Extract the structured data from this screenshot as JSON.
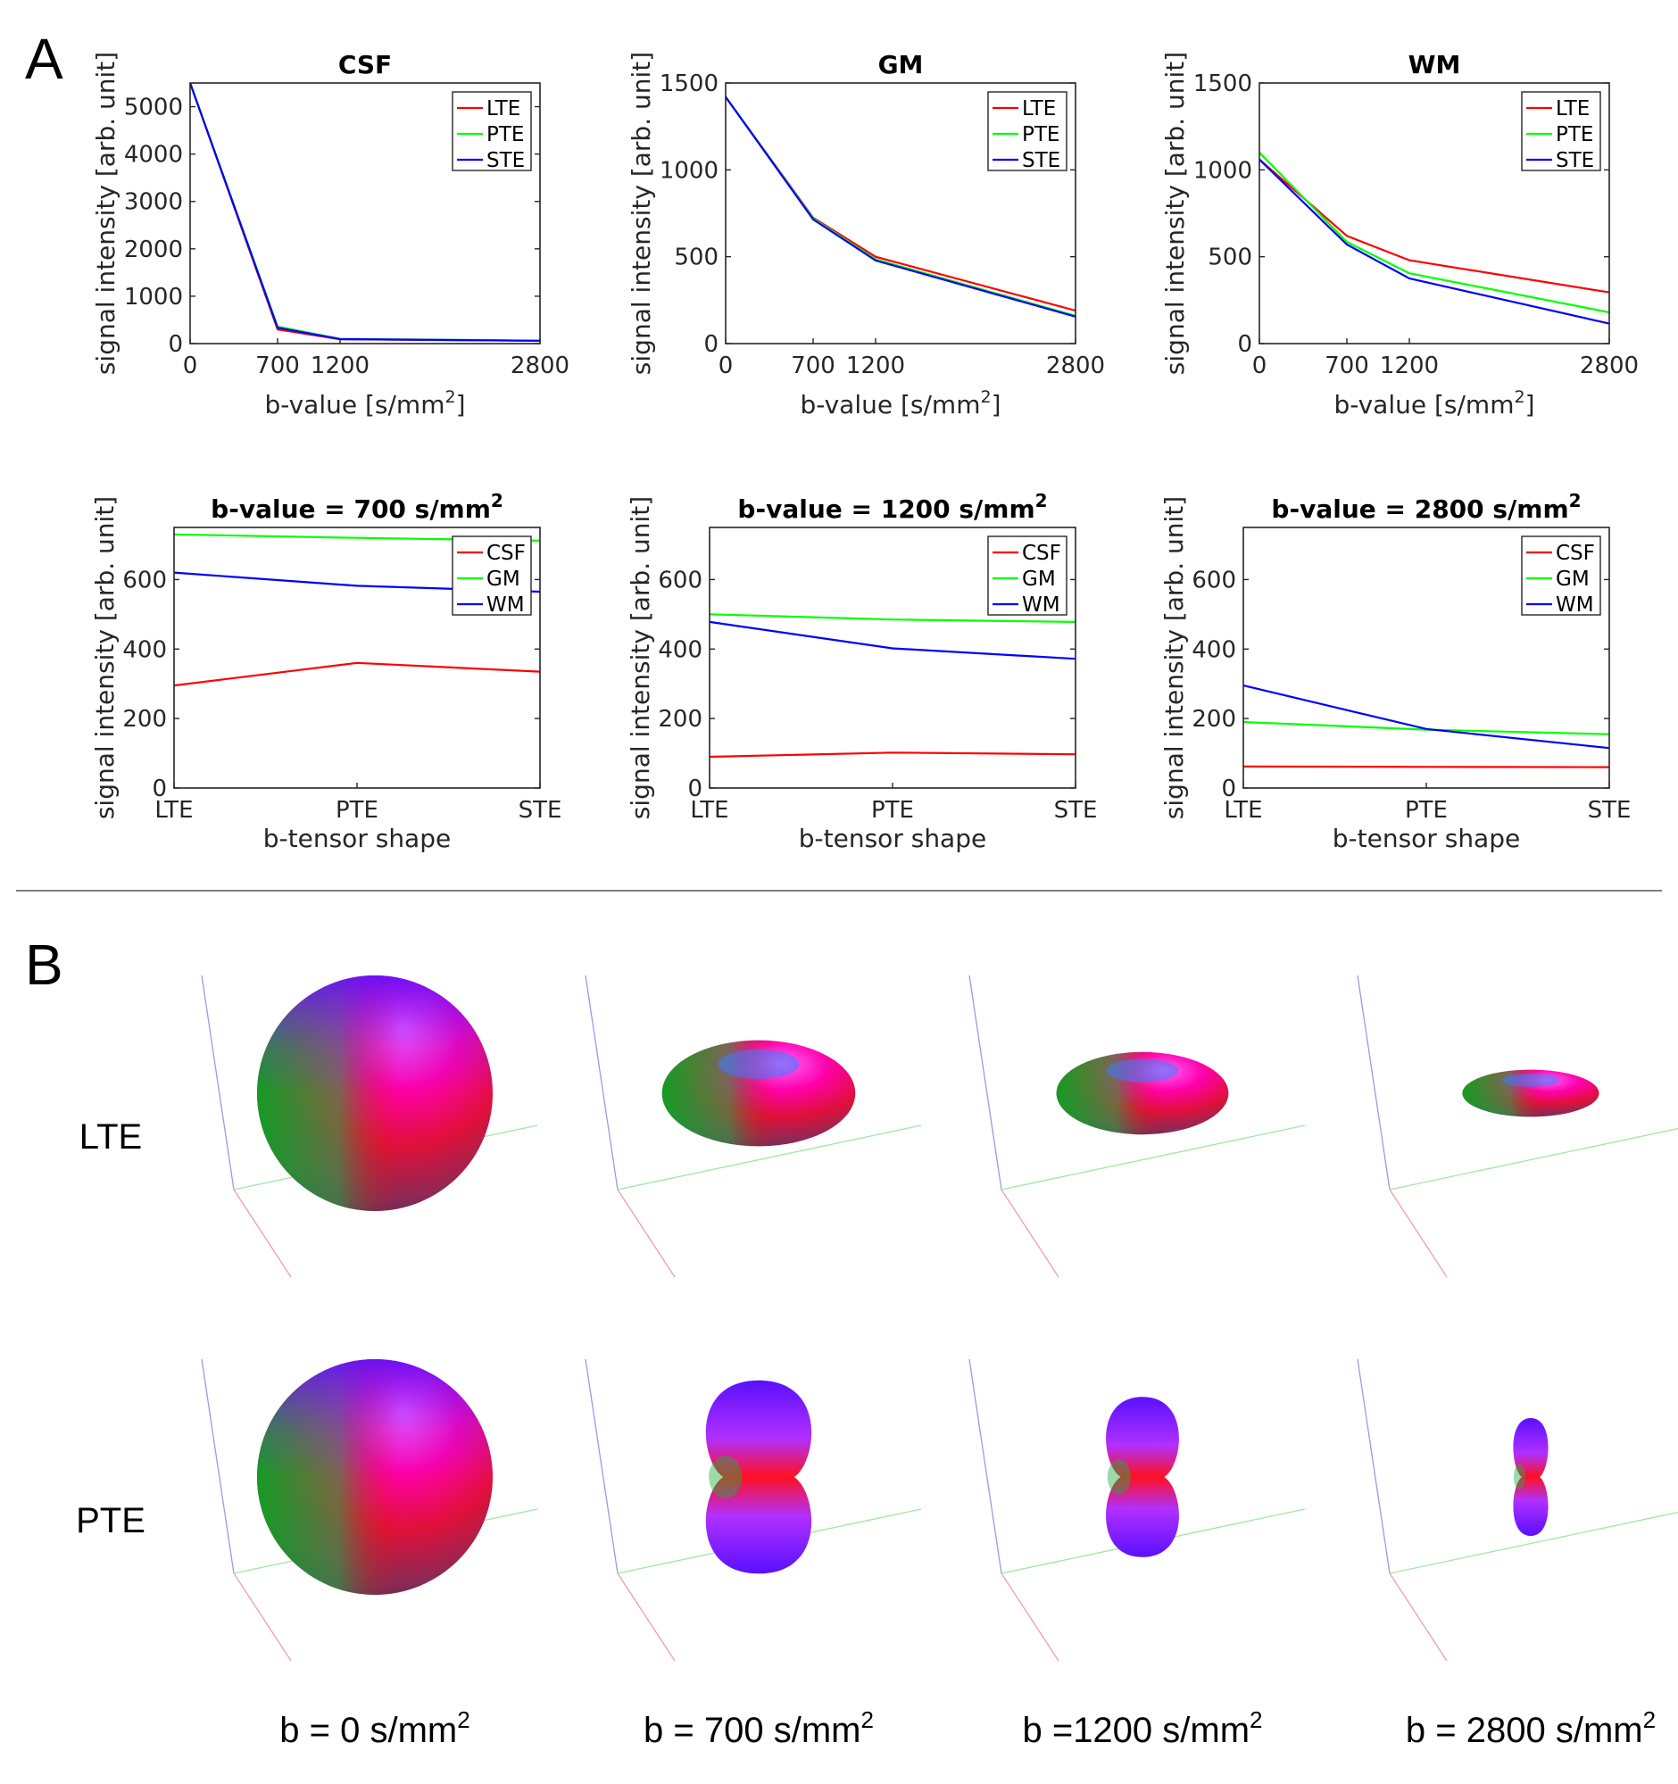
{
  "panels": {
    "a": "A",
    "b": "B"
  },
  "colors": {
    "LTE": "#ff0000",
    "PTE": "#00ff00",
    "STE": "#0000ff",
    "CSF": "#ff0000",
    "GM": "#00ff00",
    "WM": "#0000ff"
  },
  "chart_data": [
    {
      "type": "line",
      "title": "CSF",
      "xlabel": "b-value [s/mm",
      "xlabel_sup": "2",
      "xlabel_end": "]",
      "ylabel": "signal intensity [arb. unit]",
      "x": [
        0,
        700,
        1200,
        2800
      ],
      "xticks": [
        "0",
        "700",
        "1200",
        "2800"
      ],
      "ylim": [
        0,
        5500
      ],
      "yticks": [
        0,
        1000,
        2000,
        3000,
        4000,
        5000
      ],
      "legend": "top-right",
      "series": [
        {
          "name": "LTE",
          "values": [
            5500,
            300,
            90,
            60
          ]
        },
        {
          "name": "PTE",
          "values": [
            5500,
            360,
            100,
            60
          ]
        },
        {
          "name": "STE",
          "values": [
            5500,
            335,
            95,
            60
          ]
        }
      ]
    },
    {
      "type": "line",
      "title": "GM",
      "xlabel": "b-value [s/mm",
      "xlabel_sup": "2",
      "xlabel_end": "]",
      "ylabel": "signal intensity [arb. unit]",
      "x": [
        0,
        700,
        1200,
        2800
      ],
      "xticks": [
        "0",
        "700",
        "1200",
        "2800"
      ],
      "ylim": [
        0,
        1500
      ],
      "yticks": [
        0,
        500,
        1000,
        1500
      ],
      "legend": "top-right",
      "series": [
        {
          "name": "LTE",
          "values": [
            1420,
            725,
            500,
            190
          ]
        },
        {
          "name": "PTE",
          "values": [
            1420,
            720,
            485,
            160
          ]
        },
        {
          "name": "STE",
          "values": [
            1420,
            715,
            478,
            155
          ]
        }
      ]
    },
    {
      "type": "line",
      "title": "WM",
      "xlabel": "b-value [s/mm",
      "xlabel_sup": "2",
      "xlabel_end": "]",
      "ylabel": "signal intensity [arb. unit]",
      "x": [
        0,
        700,
        1200,
        2800
      ],
      "xticks": [
        "0",
        "700",
        "1200",
        "2800"
      ],
      "ylim": [
        0,
        1500
      ],
      "yticks": [
        0,
        500,
        1000,
        1500
      ],
      "legend": "top-right",
      "series": [
        {
          "name": "LTE",
          "values": [
            1060,
            620,
            480,
            295
          ]
        },
        {
          "name": "PTE",
          "values": [
            1100,
            585,
            405,
            180
          ]
        },
        {
          "name": "STE",
          "values": [
            1060,
            570,
            375,
            115
          ]
        }
      ]
    },
    {
      "type": "line",
      "title": "b-value = 700 s/mm",
      "title_sup": "2",
      "xlabel": "b-tensor shape",
      "ylabel": "signal intensity [arb. unit]",
      "categories": [
        "LTE",
        "PTE",
        "STE"
      ],
      "ylim": [
        0,
        750
      ],
      "yticks": [
        0,
        200,
        400,
        600
      ],
      "legend": "top-right",
      "series": [
        {
          "name": "CSF",
          "values": [
            295,
            360,
            335
          ]
        },
        {
          "name": "GM",
          "values": [
            730,
            720,
            712
          ]
        },
        {
          "name": "WM",
          "values": [
            620,
            582,
            565
          ]
        }
      ]
    },
    {
      "type": "line",
      "title": "b-value = 1200 s/mm",
      "title_sup": "2",
      "xlabel": "b-tensor shape",
      "ylabel": "signal intensity [arb. unit]",
      "categories": [
        "LTE",
        "PTE",
        "STE"
      ],
      "ylim": [
        0,
        750
      ],
      "yticks": [
        0,
        200,
        400,
        600
      ],
      "legend": "top-right",
      "series": [
        {
          "name": "CSF",
          "values": [
            90,
            102,
            97
          ]
        },
        {
          "name": "GM",
          "values": [
            500,
            485,
            478
          ]
        },
        {
          "name": "WM",
          "values": [
            478,
            402,
            372
          ]
        }
      ]
    },
    {
      "type": "line",
      "title": "b-value = 2800 s/mm",
      "title_sup": "2",
      "xlabel": "b-tensor shape",
      "ylabel": "signal intensity [arb. unit]",
      "categories": [
        "LTE",
        "PTE",
        "STE"
      ],
      "ylim": [
        0,
        750
      ],
      "yticks": [
        0,
        200,
        400,
        600
      ],
      "legend": "top-right",
      "series": [
        {
          "name": "CSF",
          "values": [
            62,
            61,
            60
          ]
        },
        {
          "name": "GM",
          "values": [
            190,
            168,
            155
          ]
        },
        {
          "name": "WM",
          "values": [
            295,
            170,
            115
          ]
        }
      ]
    }
  ],
  "glyphs": {
    "rows": [
      {
        "label": "LTE"
      },
      {
        "label": "PTE"
      }
    ],
    "columns": [
      {
        "label": "b = 0 s/mm",
        "sup": "2",
        "lte": {
          "rx": 1.0,
          "ry": 1.0
        },
        "pte": {
          "rx": 1.0,
          "ry": 1.0
        }
      },
      {
        "label": "b = 700 s/mm",
        "sup": "2",
        "lte": {
          "rx": 0.82,
          "ry": 0.45
        },
        "pte": {
          "rx": 0.47,
          "ry": 0.82
        }
      },
      {
        "label": "b =1200 s/mm",
        "sup": "2",
        "lte": {
          "rx": 0.73,
          "ry": 0.35
        },
        "pte": {
          "rx": 0.33,
          "ry": 0.68
        }
      },
      {
        "label": "b = 2800 s/mm",
        "sup": "2",
        "lte": {
          "rx": 0.58,
          "ry": 0.2
        },
        "pte": {
          "rx": 0.16,
          "ry": 0.5
        }
      }
    ]
  }
}
